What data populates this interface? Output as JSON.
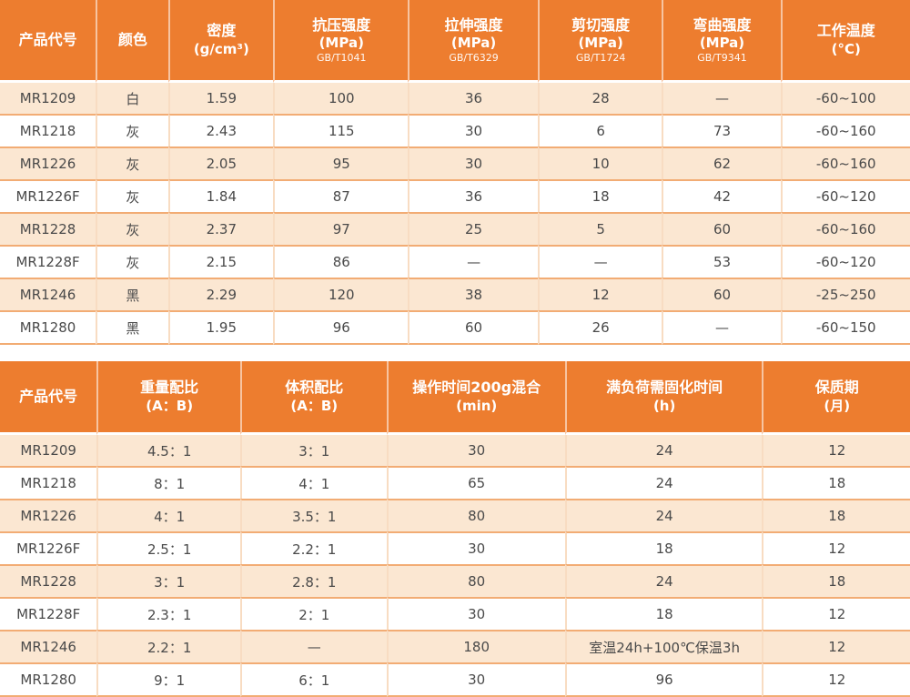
{
  "theme": {
    "header_bg": "#ED7D2F",
    "header_text": "#FFFFFF",
    "row_alt_bg": "#FBE7D2",
    "row_bg": "#FFFFFF",
    "horizontal_line": "#F2AC74",
    "vertical_line": "#F8DCC2",
    "body_text": "#4A4A4A"
  },
  "mechanical_table": {
    "columns": [
      {
        "title": "产品代号",
        "sub": "",
        "std": ""
      },
      {
        "title": "颜色",
        "sub": "",
        "std": ""
      },
      {
        "title": "密度",
        "sub": "(g/cm³)",
        "std": ""
      },
      {
        "title": "抗压强度",
        "sub": "(MPa)",
        "std": "GB/T1041"
      },
      {
        "title": "拉伸强度",
        "sub": "(MPa)",
        "std": "GB/T6329"
      },
      {
        "title": "剪切强度",
        "sub": "(MPa)",
        "std": "GB/T1724"
      },
      {
        "title": "弯曲强度",
        "sub": "(MPa)",
        "std": "GB/T9341"
      },
      {
        "title": "工作温度",
        "sub": "(°C)",
        "std": ""
      }
    ],
    "rows": [
      [
        "MR1209",
        "白",
        "1.59",
        "100",
        "36",
        "28",
        "—",
        "-60~100"
      ],
      [
        "MR1218",
        "灰",
        "2.43",
        "115",
        "30",
        "6",
        "73",
        "-60~160"
      ],
      [
        "MR1226",
        "灰",
        "2.05",
        "95",
        "30",
        "10",
        "62",
        "-60~160"
      ],
      [
        "MR1226F",
        "灰",
        "1.84",
        "87",
        "36",
        "18",
        "42",
        "-60~120"
      ],
      [
        "MR1228",
        "灰",
        "2.37",
        "97",
        "25",
        "5",
        "60",
        "-60~160"
      ],
      [
        "MR1228F",
        "灰",
        "2.15",
        "86",
        "—",
        "—",
        "53",
        "-60~120"
      ],
      [
        "MR1246",
        "黑",
        "2.29",
        "120",
        "38",
        "12",
        "60",
        "-25~250"
      ],
      [
        "MR1280",
        "黑",
        "1.95",
        "96",
        "60",
        "26",
        "—",
        "-60~150"
      ]
    ]
  },
  "mixing_table": {
    "columns": [
      {
        "title": "产品代号",
        "sub": "",
        "std": ""
      },
      {
        "title": "重量配比",
        "sub": "(A：B)",
        "std": ""
      },
      {
        "title": "体积配比",
        "sub": "(A：B)",
        "std": ""
      },
      {
        "title": "操作时间200g混合",
        "sub": "(min)",
        "std": ""
      },
      {
        "title": "满负荷需固化时间",
        "sub": "(h)",
        "std": ""
      },
      {
        "title": "保质期",
        "sub": "(月)",
        "std": ""
      }
    ],
    "rows": [
      [
        "MR1209",
        "4.5：1",
        "3：1",
        "30",
        "24",
        "12"
      ],
      [
        "MR1218",
        "8：1",
        "4：1",
        "65",
        "24",
        "18"
      ],
      [
        "MR1226",
        "4：1",
        "3.5：1",
        "80",
        "24",
        "18"
      ],
      [
        "MR1226F",
        "2.5：1",
        "2.2：1",
        "30",
        "18",
        "12"
      ],
      [
        "MR1228",
        "3：1",
        "2.8：1",
        "80",
        "24",
        "18"
      ],
      [
        "MR1228F",
        "2.3：1",
        "2：1",
        "30",
        "18",
        "12"
      ],
      [
        "MR1246",
        "2.2：1",
        "—",
        "180",
        "室温24h+100℃保温3h",
        "12"
      ],
      [
        "MR1280",
        "9：1",
        "6：1",
        "30",
        "96",
        "12"
      ]
    ]
  }
}
